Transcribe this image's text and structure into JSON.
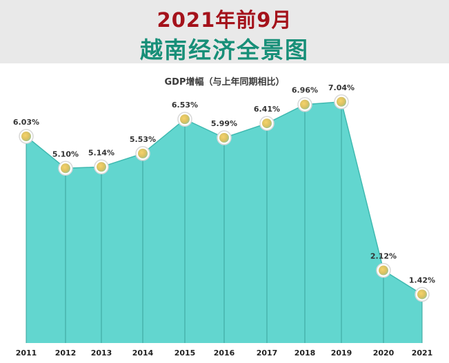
{
  "header": {
    "title_line1": "2021年前9月",
    "title_line2": "越南经济全景图"
  },
  "chart_data": {
    "type": "area",
    "title": "GDP增幅（与上年同期相比）",
    "categories": [
      "2011",
      "2012",
      "2013",
      "2014",
      "2015",
      "2016",
      "2017",
      "2018",
      "2019",
      "2020",
      "2021"
    ],
    "values": [
      6.03,
      5.1,
      5.14,
      5.53,
      6.53,
      5.99,
      6.41,
      6.96,
      7.04,
      2.12,
      1.42
    ],
    "value_labels": [
      "6.03%",
      "5.10%",
      "5.14%",
      "5.53%",
      "6.53%",
      "5.99%",
      "6.41%",
      "6.96%",
      "7.04%",
      "2.12%",
      "1.42%"
    ],
    "unit": "%",
    "xlabel": "",
    "ylabel": "",
    "ylim": [
      0,
      8
    ],
    "grid": false,
    "legend": "none",
    "fill_color": "#62d6cf",
    "line_color": "#3fb9b0",
    "marker_color": "#f0c14b"
  }
}
